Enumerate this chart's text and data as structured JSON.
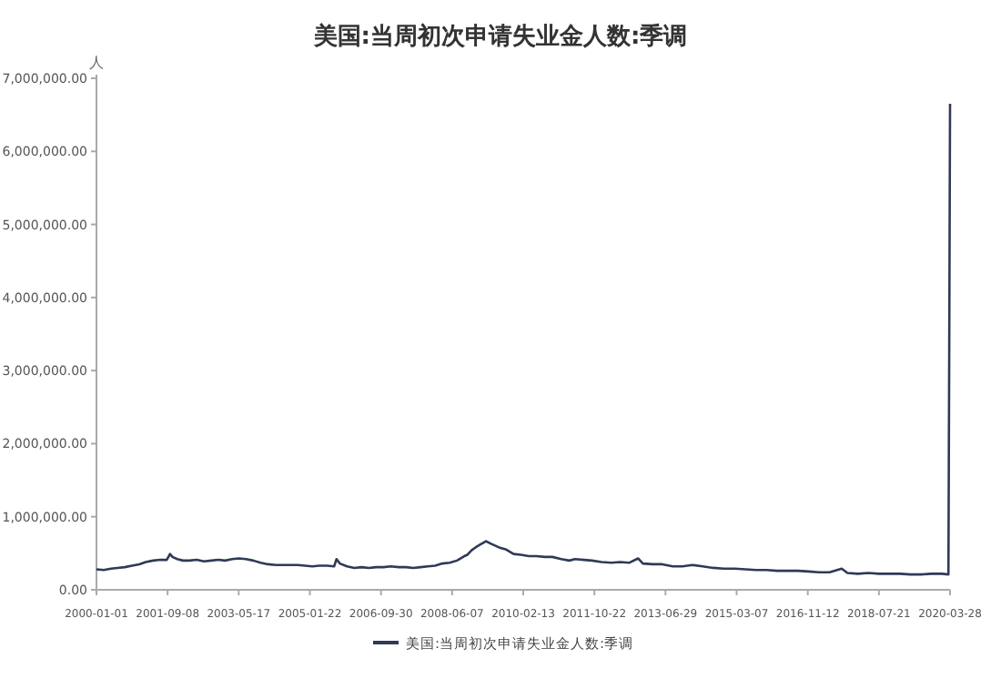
{
  "chart_data": {
    "type": "line",
    "title": "美国:当周初次申请失业金人数:季调",
    "ylabel": "人",
    "legend": "bottom",
    "grid": false,
    "marker": "none",
    "line_style": "solid",
    "xlim": [
      "2000-01-01",
      "2020-03-28"
    ],
    "xticks": [
      "2000-01-01",
      "2001-09-08",
      "2003-05-17",
      "2005-01-22",
      "2006-09-30",
      "2008-06-07",
      "2010-02-13",
      "2011-10-22",
      "2013-06-29",
      "2015-03-07",
      "2016-11-12",
      "2018-07-21",
      "2020-03-28"
    ],
    "ylim": [
      0,
      7000000
    ],
    "yticks": [
      {
        "value": 0,
        "label": "0.00"
      },
      {
        "value": 1000000,
        "label": "1,000,000.00"
      },
      {
        "value": 2000000,
        "label": "2,000,000.00"
      },
      {
        "value": 3000000,
        "label": "3,000,000.00"
      },
      {
        "value": 4000000,
        "label": "4,000,000.00"
      },
      {
        "value": 5000000,
        "label": "5,000,000.00"
      },
      {
        "value": 6000000,
        "label": "6,000,000.00"
      },
      {
        "value": 7000000,
        "label": "7,000,000.00"
      }
    ],
    "series": [
      {
        "name": "美国:当周初次申请失业金人数:季调",
        "color": "#2f3a56",
        "x": [
          "2000-01-01",
          "2000-03-04",
          "2000-05-06",
          "2000-07-01",
          "2000-09-02",
          "2000-11-04",
          "2001-01-06",
          "2001-03-03",
          "2001-05-05",
          "2001-07-07",
          "2001-09-01",
          "2001-09-29",
          "2001-10-20",
          "2001-12-01",
          "2002-01-19",
          "2002-03-16",
          "2002-05-18",
          "2002-07-20",
          "2002-09-21",
          "2002-11-23",
          "2003-01-18",
          "2003-03-22",
          "2003-05-17",
          "2003-07-19",
          "2003-09-20",
          "2003-11-22",
          "2004-01-24",
          "2004-04-03",
          "2004-06-05",
          "2004-08-07",
          "2004-10-09",
          "2004-12-11",
          "2005-02-12",
          "2005-04-16",
          "2005-06-18",
          "2005-08-20",
          "2005-09-10",
          "2005-10-08",
          "2005-12-10",
          "2006-02-11",
          "2006-04-15",
          "2006-06-17",
          "2006-08-19",
          "2006-10-21",
          "2006-12-23",
          "2007-03-03",
          "2007-05-05",
          "2007-07-07",
          "2007-09-08",
          "2007-11-10",
          "2008-01-12",
          "2008-03-15",
          "2008-05-17",
          "2008-07-19",
          "2008-09-20",
          "2008-10-18",
          "2008-11-22",
          "2008-12-27",
          "2009-02-07",
          "2009-03-28",
          "2009-05-09",
          "2009-07-18",
          "2009-09-19",
          "2009-11-21",
          "2010-01-23",
          "2010-04-03",
          "2010-06-05",
          "2010-08-21",
          "2010-10-23",
          "2011-01-08",
          "2011-03-19",
          "2011-05-07",
          "2011-07-23",
          "2011-10-01",
          "2011-12-24",
          "2012-03-17",
          "2012-06-02",
          "2012-08-18",
          "2012-11-03",
          "2012-12-15",
          "2013-03-09",
          "2013-06-01",
          "2013-08-31",
          "2013-11-23",
          "2014-02-15",
          "2014-05-17",
          "2014-08-16",
          "2014-11-15",
          "2015-02-21",
          "2015-05-23",
          "2015-08-22",
          "2015-11-21",
          "2016-02-20",
          "2016-05-21",
          "2016-08-20",
          "2016-11-19",
          "2017-02-18",
          "2017-05-20",
          "2017-09-02",
          "2017-10-21",
          "2018-01-20",
          "2018-04-21",
          "2018-07-21",
          "2018-10-20",
          "2019-01-19",
          "2019-04-20",
          "2019-07-20",
          "2019-10-19",
          "2020-01-18",
          "2020-03-14",
          "2020-03-21",
          "2020-03-28"
        ],
        "values": [
          280000,
          270000,
          290000,
          300000,
          310000,
          330000,
          350000,
          380000,
          400000,
          410000,
          410000,
          490000,
          450000,
          420000,
          400000,
          400000,
          410000,
          390000,
          400000,
          410000,
          400000,
          420000,
          430000,
          420000,
          400000,
          370000,
          350000,
          340000,
          340000,
          340000,
          340000,
          330000,
          320000,
          330000,
          330000,
          320000,
          420000,
          360000,
          320000,
          300000,
          310000,
          300000,
          310000,
          310000,
          320000,
          310000,
          310000,
          300000,
          310000,
          320000,
          330000,
          360000,
          370000,
          400000,
          460000,
          480000,
          540000,
          580000,
          620000,
          665000,
          630000,
          580000,
          550000,
          490000,
          480000,
          460000,
          460000,
          450000,
          450000,
          420000,
          400000,
          420000,
          410000,
          400000,
          380000,
          370000,
          380000,
          370000,
          430000,
          360000,
          350000,
          350000,
          320000,
          320000,
          340000,
          320000,
          300000,
          290000,
          290000,
          280000,
          270000,
          270000,
          260000,
          260000,
          260000,
          250000,
          240000,
          240000,
          290000,
          230000,
          220000,
          230000,
          220000,
          220000,
          220000,
          210000,
          210000,
          220000,
          220000,
          210000,
          3300000,
          6650000
        ]
      }
    ]
  }
}
